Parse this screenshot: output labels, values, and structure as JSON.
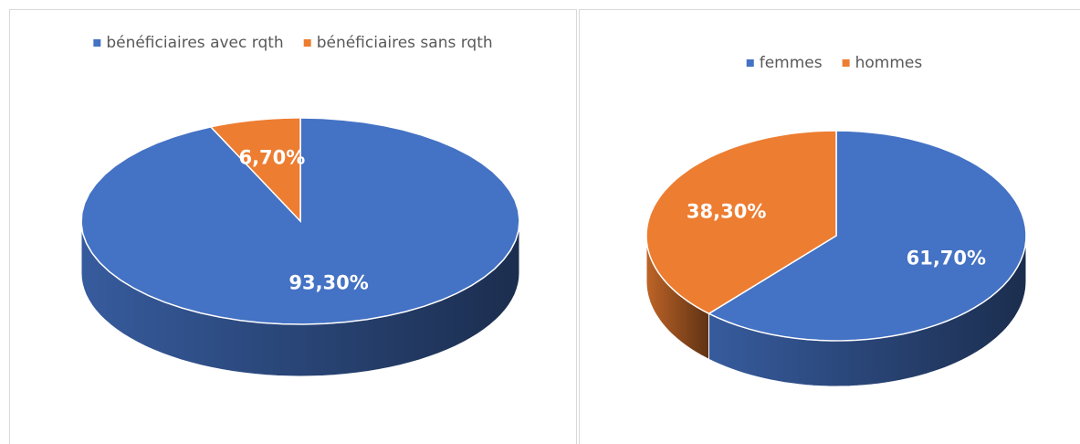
{
  "chart_data": [
    {
      "type": "pie",
      "categories": [
        "bénéficiaires avec rqth",
        "bénéficiaires sans rqth"
      ],
      "values": [
        93.3,
        6.7
      ],
      "value_labels": [
        "93,30%",
        "6,70%"
      ],
      "colors": [
        "#4472c4",
        "#ed7d31"
      ],
      "legend": "top"
    },
    {
      "type": "pie",
      "categories": [
        "femmes",
        "hommes"
      ],
      "values": [
        61.7,
        38.3
      ],
      "value_labels": [
        "61,70%",
        "38,30%"
      ],
      "colors": [
        "#4472c4",
        "#ed7d31"
      ],
      "legend": "top"
    }
  ]
}
